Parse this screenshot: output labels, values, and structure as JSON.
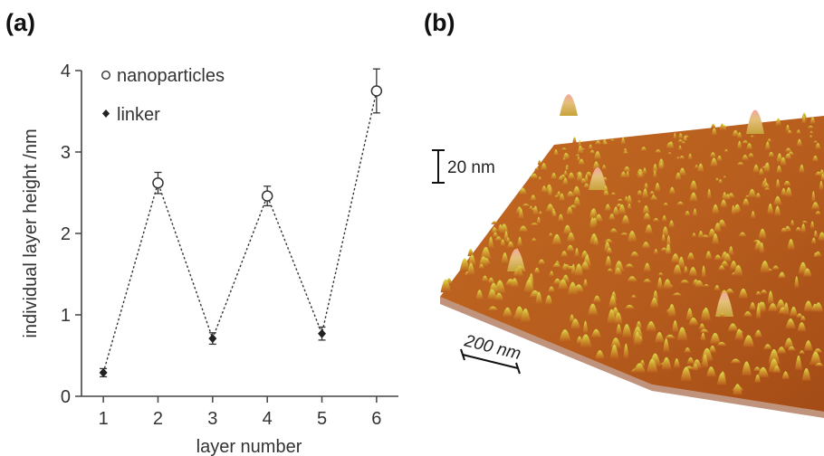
{
  "panels": {
    "a_label": "(a)",
    "b_label": "(b)"
  },
  "chart_data": {
    "type": "scatter",
    "title": "",
    "xlabel": "layer number",
    "ylabel": "individual layer height /nm",
    "xlim": [
      0.6,
      6.4
    ],
    "ylim": [
      0,
      4
    ],
    "xticks": [
      1,
      2,
      3,
      4,
      5,
      6
    ],
    "yticks": [
      0,
      1,
      2,
      3,
      4
    ],
    "x_tick_labels": [
      "1",
      "2",
      "3",
      "4",
      "5",
      "6"
    ],
    "y_tick_labels": [
      "0",
      "1",
      "2",
      "3",
      "4"
    ],
    "grid": false,
    "legend_position": "top-left",
    "connector": "dotted line through all points in layer order",
    "series": [
      {
        "name": "nanoparticles",
        "marker": "open-circle",
        "x": [
          2,
          4,
          6
        ],
        "y": [
          2.62,
          2.46,
          3.75
        ],
        "error": [
          0.13,
          0.12,
          0.27
        ]
      },
      {
        "name": "linker",
        "marker": "filled-diamond",
        "x": [
          1,
          3,
          5
        ],
        "y": [
          0.29,
          0.71,
          0.77
        ],
        "error": [
          0.05,
          0.07,
          0.08
        ]
      }
    ]
  },
  "afm_image": {
    "vertical_scale": "20 nm",
    "lateral_scale": "200 nm",
    "colors": {
      "low": "#b4581c",
      "mid": "#d68a2c",
      "high": "#d8d84a",
      "peak": "#f0a6a0"
    }
  }
}
